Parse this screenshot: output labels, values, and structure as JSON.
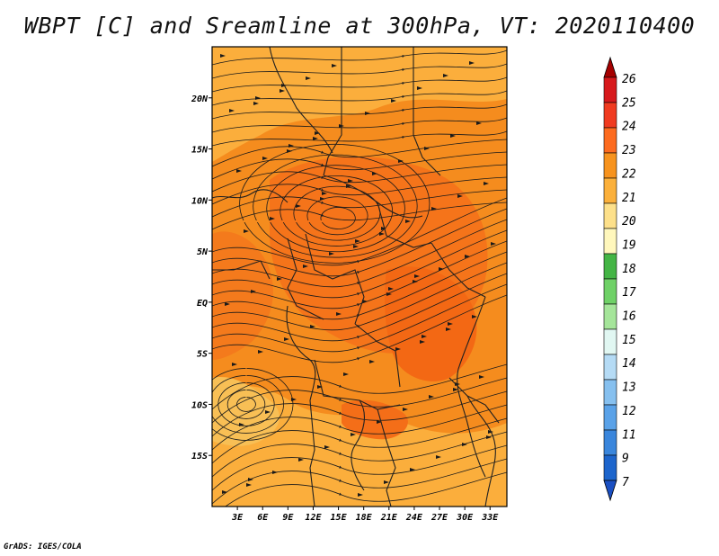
{
  "title": "WBPT [C] and Sreamline at 300hPa, VT: 2020110400",
  "credit": "GrADS: IGES/COLA",
  "map": {
    "lon_range": [
      0,
      35
    ],
    "lat_range": [
      -20,
      25
    ],
    "x_ticks": [
      "3E",
      "6E",
      "9E",
      "12E",
      "15E",
      "18E",
      "21E",
      "24E",
      "27E",
      "30E",
      "33E"
    ],
    "x_tick_values": [
      3,
      6,
      9,
      12,
      15,
      18,
      21,
      24,
      27,
      30,
      33
    ],
    "y_ticks": [
      "20N",
      "15N",
      "10N",
      "5N",
      "EQ",
      "5S",
      "10S",
      "15S"
    ],
    "y_tick_values": [
      20,
      15,
      10,
      5,
      0,
      -5,
      -10,
      -15
    ],
    "field_color_dominant": "#f58c1e",
    "field_color_light": "#f9b13c",
    "field_color_warm": "#f26a14"
  },
  "colorbar": {
    "labels": [
      "26",
      "25",
      "24",
      "23",
      "22",
      "21",
      "20",
      "19",
      "18",
      "17",
      "16",
      "15",
      "14",
      "13",
      "12",
      "11",
      "9",
      "7"
    ],
    "colors": [
      "#a50000",
      "#d7191c",
      "#f03b20",
      "#fd6b1f",
      "#f7931e",
      "#fbb03b",
      "#fde08a",
      "#fff7bc",
      "#44b545",
      "#6fd167",
      "#a5e59a",
      "#e1f7f2",
      "#b5dbf5",
      "#86c0ef",
      "#5aa2e8",
      "#3a86dc",
      "#1d65cc",
      "#1a4fc2"
    ]
  }
}
